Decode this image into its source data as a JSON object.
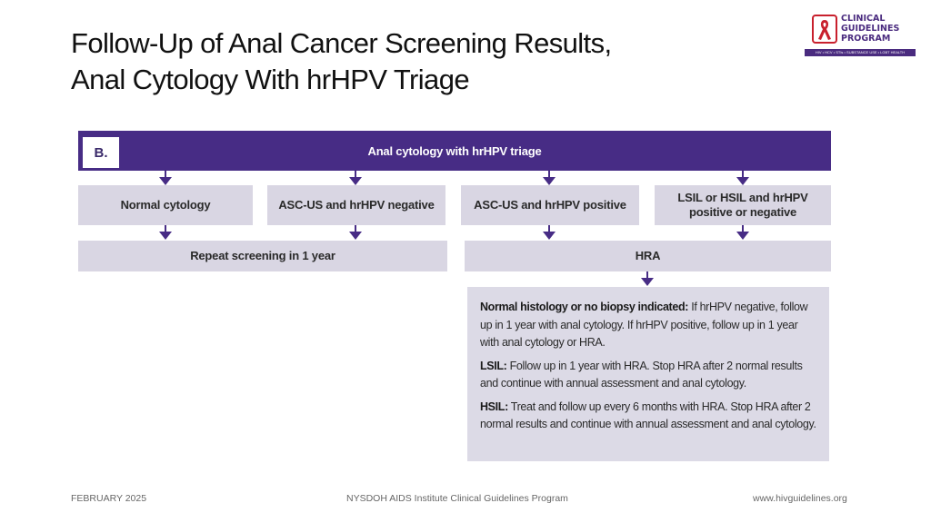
{
  "slide": {
    "title_line1": "Follow-Up of Anal Cancer Screening Results,",
    "title_line2": "Anal Cytology With hrHPV Triage"
  },
  "logo": {
    "line1": "CLINICAL",
    "line2": "GUIDELINES",
    "line3": "PROGRAM",
    "tagline": "HIV • HCV • STIs • SUBSTANCE USE • LGBT HEALTH",
    "icon": "red-ribbon-icon",
    "colors": {
      "purple": "#4a2b7f",
      "red": "#c8202d"
    }
  },
  "diagram": {
    "panel_label": "B.",
    "header": "Anal cytology with hrHPV triage",
    "results": [
      "Normal cytology",
      "ASC-US and hrHPV negative",
      "ASC-US and hrHPV positive",
      "LSIL or HSIL and hrHPV positive or negative"
    ],
    "actions": {
      "repeat": "Repeat screening in 1 year",
      "hra": "HRA"
    },
    "followup": {
      "normal_label": "Normal histology or no biopsy indicated:",
      "normal_text": "If hrHPV negative, follow up in 1 year with anal cytology. If hrHPV positive, follow up in 1 year with anal cytology or HRA.",
      "lsil_label": "LSIL:",
      "lsil_text": "Follow up in 1 year with HRA. Stop HRA after 2 normal results and continue with annual assessment and anal cytology.",
      "hsil_label": "HSIL:",
      "hsil_text": "Treat and follow up every 6 months with HRA. Stop HRA after 2 normal results and continue with annual assessment and anal cytology."
    },
    "colors": {
      "header": "#472c85",
      "box": "#d9d6e3",
      "arrow": "#472c85"
    }
  },
  "footer": {
    "date": "FEBRUARY 2025",
    "program": "NYSDOH AIDS Institute Clinical Guidelines Program",
    "website": "www.hivguidelines.org"
  }
}
